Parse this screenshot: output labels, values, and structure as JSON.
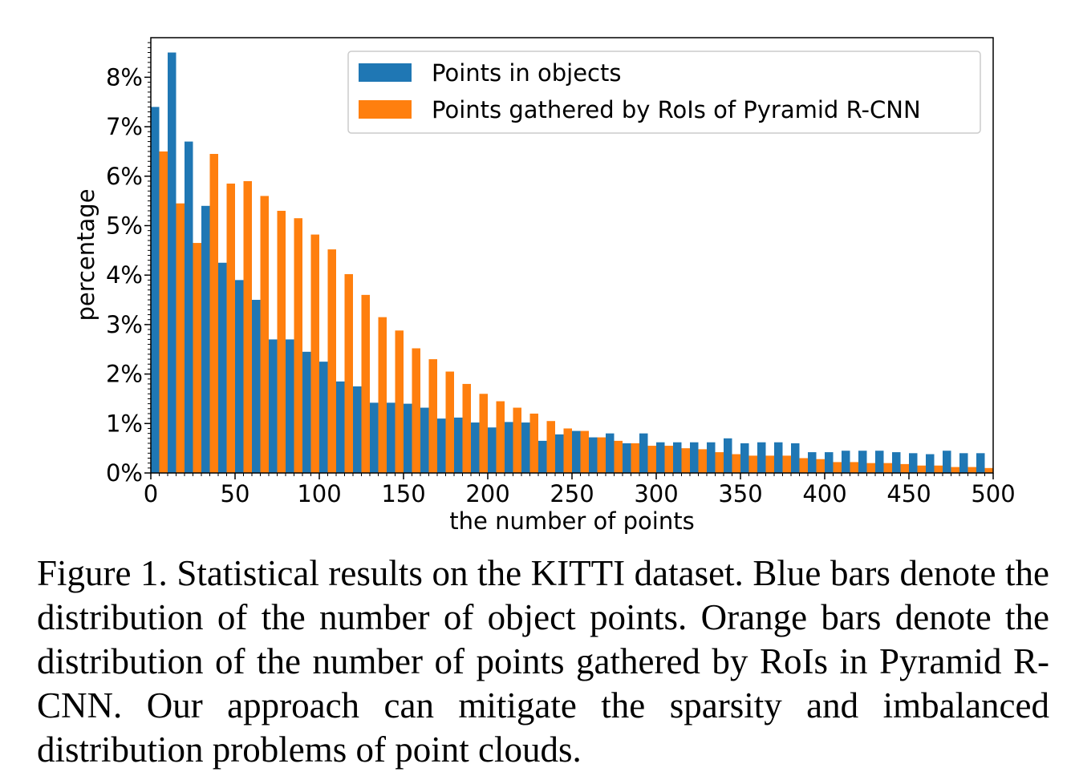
{
  "chart_data": {
    "type": "bar",
    "xlabel": "the number of points",
    "ylabel": "percentage",
    "xlim": [
      0,
      500
    ],
    "ylim": [
      0,
      8.8
    ],
    "x_ticks": [
      0,
      50,
      100,
      150,
      200,
      250,
      300,
      350,
      400,
      450,
      500
    ],
    "x_tick_labels": [
      "0",
      "50",
      "100",
      "150",
      "200",
      "250",
      "300",
      "350",
      "400",
      "450",
      "500"
    ],
    "y_ticks": [
      0,
      1,
      2,
      3,
      4,
      5,
      6,
      7,
      8
    ],
    "y_tick_labels": [
      "0%",
      "1%",
      "2%",
      "3%",
      "4%",
      "5%",
      "6%",
      "7%",
      "8%"
    ],
    "bin_width": 10,
    "bin_starts": [
      0,
      10,
      20,
      30,
      40,
      50,
      60,
      70,
      80,
      90,
      100,
      110,
      120,
      130,
      140,
      150,
      160,
      170,
      180,
      190,
      200,
      210,
      220,
      230,
      240,
      250,
      260,
      270,
      280,
      290,
      300,
      310,
      320,
      330,
      340,
      350,
      360,
      370,
      380,
      390,
      400,
      410,
      420,
      430,
      440,
      450,
      460,
      470,
      480,
      490
    ],
    "legend_position": "top-right",
    "grid": false,
    "series": [
      {
        "name": "Points in objects",
        "color": "#1f77b4",
        "values": [
          7.4,
          8.5,
          6.7,
          5.4,
          4.25,
          3.9,
          3.5,
          2.7,
          2.7,
          2.45,
          2.25,
          1.85,
          1.75,
          1.42,
          1.42,
          1.4,
          1.32,
          1.1,
          1.12,
          1.02,
          0.92,
          1.03,
          1.02,
          0.65,
          0.78,
          0.85,
          0.72,
          0.8,
          0.6,
          0.8,
          0.62,
          0.62,
          0.62,
          0.62,
          0.7,
          0.6,
          0.62,
          0.62,
          0.6,
          0.42,
          0.42,
          0.45,
          0.45,
          0.45,
          0.42,
          0.4,
          0.38,
          0.45,
          0.4,
          0.4
        ]
      },
      {
        "name": "Points gathered by RoIs of Pyramid R-CNN",
        "color": "#ff7f0e",
        "values": [
          6.5,
          5.45,
          4.65,
          6.45,
          5.85,
          5.9,
          5.6,
          5.3,
          5.15,
          4.82,
          4.52,
          4.02,
          3.6,
          3.15,
          2.88,
          2.52,
          2.3,
          2.05,
          1.8,
          1.6,
          1.45,
          1.32,
          1.2,
          1.05,
          0.9,
          0.85,
          0.72,
          0.65,
          0.6,
          0.55,
          0.55,
          0.5,
          0.48,
          0.42,
          0.38,
          0.35,
          0.35,
          0.35,
          0.3,
          0.28,
          0.22,
          0.22,
          0.2,
          0.2,
          0.18,
          0.15,
          0.15,
          0.12,
          0.12,
          0.1
        ]
      }
    ]
  },
  "caption": "Figure 1. Statistical results on the KITTI dataset.  Blue bars denote the distribution of the number of object points. Orange bars denote the distribution of the number of points gathered by RoIs in Pyramid R-CNN. Our approach can mitigate the sparsity and imbalanced distribution problems of point clouds."
}
